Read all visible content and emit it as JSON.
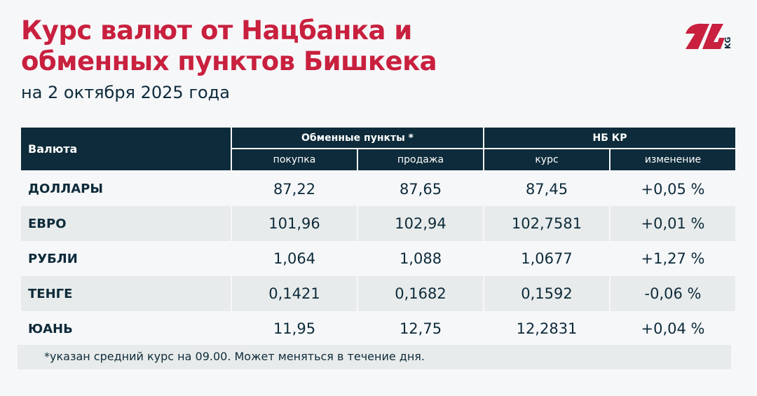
{
  "title_line1": "Курс валют от Нацбанка и",
  "title_line2": "обменных пунктов Бишкека",
  "subtitle": "на 2 октября 2025 года",
  "logo": {
    "text": "24",
    "suffix": "KG",
    "color": "#c8203e"
  },
  "table": {
    "col_currency": "Валюта",
    "group_exchange": "Обменные пункты *",
    "group_nb": "НБ КР",
    "sub": [
      "покупка",
      "продажа",
      "курс",
      "изменение"
    ],
    "rows": [
      {
        "name": "ДОЛЛАРЫ",
        "buy": "87,22",
        "sell": "87,65",
        "rate": "87,45",
        "change": "+0,05 %"
      },
      {
        "name": "ЕВРО",
        "buy": "101,96",
        "sell": "102,94",
        "rate": "102,7581",
        "change": "+0,01 %"
      },
      {
        "name": "РУБЛИ",
        "buy": "1,064",
        "sell": "1,088",
        "rate": "1,0677",
        "change": "+1,27 %"
      },
      {
        "name": "ТЕНГЕ",
        "buy": "0,1421",
        "sell": "0,1682",
        "rate": "0,1592",
        "change": "-0,06 %"
      },
      {
        "name": "ЮАНЬ",
        "buy": "11,95",
        "sell": "12,75",
        "rate": "12,2831",
        "change": "+0,04 %"
      }
    ]
  },
  "footnote": "*указан средний курс на 09.00. Может меняться в течение дня.",
  "colors": {
    "accent": "#c8203e",
    "header": "#0d2b3a"
  }
}
